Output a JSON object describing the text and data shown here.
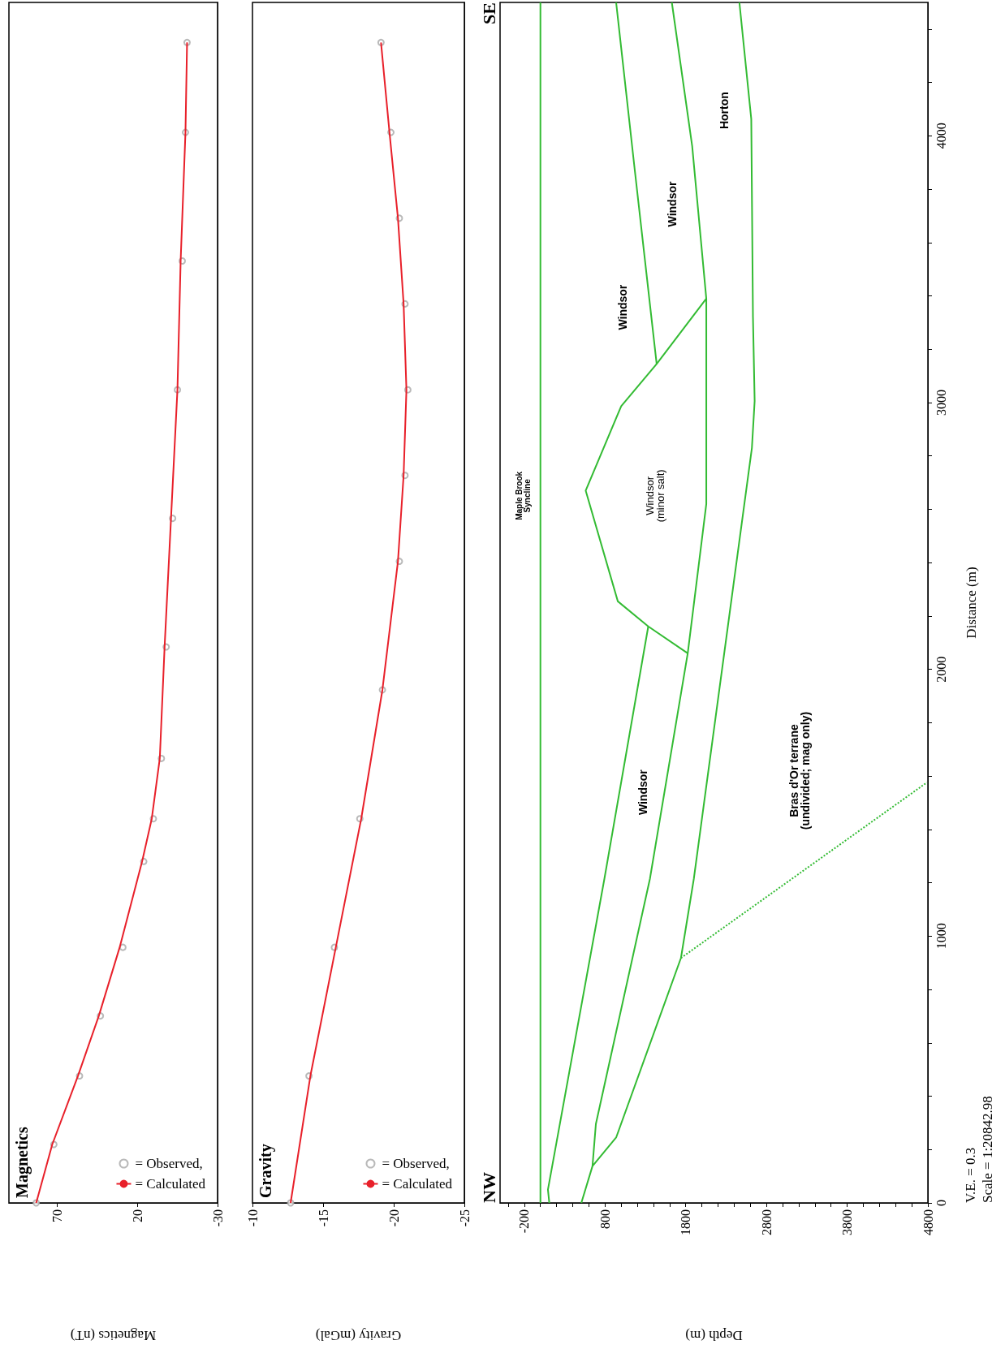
{
  "chart_data": [
    {
      "type": "line",
      "title": "Magnetics",
      "xlabel": "Magnetics (nT)",
      "xlim": [
        100,
        -30
      ],
      "xticks": [
        70,
        20,
        -30
      ],
      "ylim": [
        0,
        4500
      ],
      "tick_labels": "x",
      "grid": false,
      "legend": "bottom right",
      "series": [
        {
          "name": "= Observed,",
          "type": "scatter",
          "marker": "circle",
          "color": "#a8a8a8",
          "x": [
            83,
            72,
            56,
            43,
            29,
            16,
            10,
            5,
            2,
            -2,
            -5,
            -8,
            -10,
            -11
          ],
          "values": [
            0,
            219,
            476,
            701,
            958,
            1280,
            1440,
            1666,
            2084,
            2566,
            3048,
            3531,
            4013,
            4350
          ]
        },
        {
          "name": "= Calculated",
          "type": "line",
          "marker": "none",
          "line_style": "solid",
          "color": "#e8202a",
          "x": [
            83,
            73,
            57,
            44,
            31,
            17,
            11,
            6,
            3,
            -1,
            -5,
            -7,
            -10,
            -11
          ],
          "values": [
            0,
            219,
            476,
            701,
            958,
            1280,
            1440,
            1666,
            2084,
            2566,
            3048,
            3531,
            4013,
            4350
          ]
        }
      ]
    },
    {
      "type": "line",
      "title": "Gravity",
      "xlabel": "Gravity (mGal)",
      "xlim": [
        -10,
        -25
      ],
      "xticks": [
        -10,
        -15,
        -20,
        -25
      ],
      "ylim": [
        0,
        4500
      ],
      "tick_labels": "x",
      "grid": false,
      "legend": "bottom right",
      "series": [
        {
          "name": "= Observed,",
          "type": "scatter",
          "marker": "circle",
          "color": "#a8a8a8",
          "x": [
            -12.7,
            -14.0,
            -15.8,
            -17.6,
            -19.2,
            -20.4,
            -20.8,
            -21.0,
            -20.8,
            -20.4,
            -19.8,
            -19.1
          ],
          "values": [
            0,
            476,
            958,
            1440,
            1923,
            2405,
            2727,
            3048,
            3370,
            3691,
            4013,
            4350
          ]
        },
        {
          "name": "= Calculated",
          "type": "line",
          "marker": "none",
          "line_style": "solid",
          "color": "#e8202a",
          "x": [
            -12.7,
            -14.1,
            -15.9,
            -17.7,
            -19.2,
            -20.3,
            -20.7,
            -20.9,
            -20.7,
            -20.3,
            -19.7,
            -19.1
          ],
          "values": [
            0,
            476,
            958,
            1440,
            1923,
            2405,
            2727,
            3048,
            3370,
            3691,
            4013,
            4350
          ]
        }
      ]
    },
    {
      "type": "line",
      "xlabel": "Depth (m)",
      "ylabel": "Distance (m)",
      "xlim": [
        -500,
        4800
      ],
      "ylim": [
        0,
        4500
      ],
      "grid": false,
      "legend": false,
      "marker": "none",
      "xticks": [
        {
          "value": -400,
          "label": null
        },
        -200,
        {
          "value": 0,
          "label": null
        },
        {
          "value": 200,
          "label": null
        },
        {
          "value": 400,
          "label": null
        },
        {
          "value": 600,
          "label": null
        },
        800,
        {
          "value": 1000,
          "label": null
        },
        {
          "value": 1200,
          "label": null
        },
        {
          "value": 1400,
          "label": null
        },
        {
          "value": 1600,
          "label": null
        },
        1800,
        {
          "value": 2000,
          "label": null
        },
        {
          "value": 2200,
          "label": null
        },
        {
          "value": 2400,
          "label": null
        },
        {
          "value": 2600,
          "label": null
        },
        2800,
        {
          "value": 3000,
          "label": null
        },
        {
          "value": 3200,
          "label": null
        },
        {
          "value": 3400,
          "label": null
        },
        {
          "value": 3600,
          "label": null
        },
        3800,
        {
          "value": 4000,
          "label": null
        },
        {
          "value": 4200,
          "label": null
        },
        {
          "value": 4400,
          "label": null
        },
        {
          "value": 4600,
          "label": null
        },
        4800
      ],
      "yticks": [
        0,
        {
          "value": 200,
          "label": null
        },
        {
          "value": 400,
          "label": null
        },
        {
          "value": 600,
          "label": null
        },
        {
          "value": 800,
          "label": null
        },
        1000,
        {
          "value": 1200,
          "label": null
        },
        {
          "value": 1400,
          "label": null
        },
        {
          "value": 1600,
          "label": null
        },
        {
          "value": 1800,
          "label": null
        },
        2000,
        {
          "value": 2200,
          "label": null
        },
        {
          "value": 2400,
          "label": null
        },
        {
          "value": 2600,
          "label": null
        },
        {
          "value": 2800,
          "label": null
        },
        3000,
        {
          "value": 3200,
          "label": null
        },
        {
          "value": 3400,
          "label": null
        },
        {
          "value": 3600,
          "label": null
        },
        {
          "value": 3800,
          "label": null
        },
        4000,
        {
          "value": 4200,
          "label": null
        },
        {
          "value": 4400,
          "label": null
        }
      ],
      "series": [
        {
          "color": "#33bb33",
          "line_style": "solid",
          "x": [
            0,
            0
          ],
          "values": [
            0,
            4500
          ]
        },
        {
          "color": "#33bb33",
          "line_style": "solid",
          "x": [
            110,
            93,
            792,
            1336
          ],
          "values": [
            0,
            50,
            1214,
            2161
          ]
        },
        {
          "color": "#33bb33",
          "line_style": "solid",
          "x": [
            1440,
            1168,
            938
          ],
          "values": [
            3145,
            3874,
            4500
          ]
        },
        {
          "color": "#33bb33",
          "line_style": "solid",
          "x": [
            507,
            645,
            687,
            1356,
            1825,
            2055,
            2055,
            1880,
            1628
          ],
          "values": [
            0,
            138,
            296,
            1214,
            2060,
            2620,
            3390,
            3962,
            4500
          ]
        },
        {
          "color": "#33bb33",
          "line_style": "solid",
          "x": [
            645,
            938,
            1741,
            1900,
            2620,
            2654,
            2633,
            2612,
            2465
          ],
          "values": [
            138,
            245,
            918,
            1214,
            2830,
            3006,
            3321,
            4063,
            4500
          ]
        },
        {
          "color": "#33bb33",
          "line_style": "solid",
          "x": [
            1825,
            1336,
            959,
            561,
            1001,
            1440,
            2055
          ],
          "values": [
            2060,
            2161,
            2255,
            2670,
            2987,
            3145,
            3390
          ]
        },
        {
          "color": "#33bb33",
          "line_style": "dotted",
          "x": [
            1741,
            4788
          ],
          "values": [
            918,
            1576
          ]
        }
      ],
      "annotations": [
        "NW",
        "SE",
        "Maple Brook\nSyncline",
        "Windsor\n(minor salt)",
        "Windsor",
        "Windsor",
        "Windsor",
        "Horton",
        "Bras d'Or terrane\n(undivided; mag only)",
        "V.E. = 0.3",
        "Scale = 1:20842.98"
      ]
    }
  ]
}
